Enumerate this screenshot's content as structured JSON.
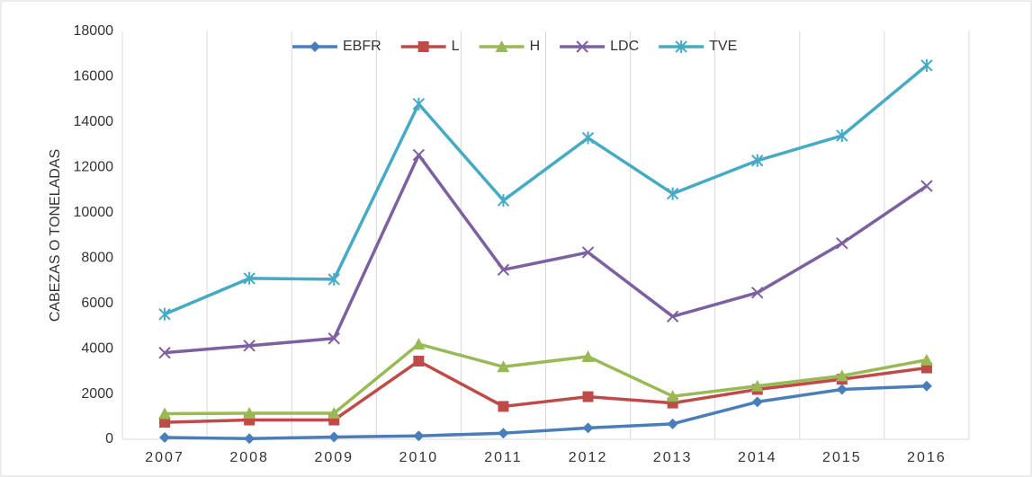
{
  "chart_data": {
    "type": "line",
    "y_label": "CABEZAS O TONELADAS",
    "categories": [
      "2007",
      "2008",
      "2009",
      "2010",
      "2011",
      "2012",
      "2013",
      "2014",
      "2015",
      "2016"
    ],
    "ylim": [
      0,
      18000
    ],
    "yticks": [
      0,
      2000,
      4000,
      6000,
      8000,
      10000,
      12000,
      14000,
      16000,
      18000
    ],
    "grid": "vertical",
    "legend": "top",
    "series": [
      {
        "name": "EBFR",
        "color": "#4a7ebb",
        "marker": "diamond",
        "values": [
          80,
          30,
          100,
          150,
          270,
          500,
          680,
          1650,
          2200,
          2350
        ]
      },
      {
        "name": "L",
        "color": "#be4b48",
        "marker": "square",
        "values": [
          750,
          850,
          850,
          3450,
          1450,
          1880,
          1600,
          2200,
          2650,
          3150
        ]
      },
      {
        "name": "H",
        "color": "#98b954",
        "marker": "triangle",
        "values": [
          1130,
          1150,
          1150,
          4200,
          3200,
          3650,
          1900,
          2350,
          2800,
          3500
        ]
      },
      {
        "name": "LDC",
        "color": "#7d60a0",
        "marker": "x",
        "values": [
          3820,
          4130,
          4450,
          12550,
          7480,
          8250,
          5420,
          6470,
          8650,
          11180
        ]
      },
      {
        "name": "TVE",
        "color": "#46aac5",
        "marker": "star",
        "values": [
          5520,
          7100,
          7060,
          14800,
          10540,
          13300,
          10840,
          12300,
          13400,
          16500
        ]
      }
    ]
  }
}
